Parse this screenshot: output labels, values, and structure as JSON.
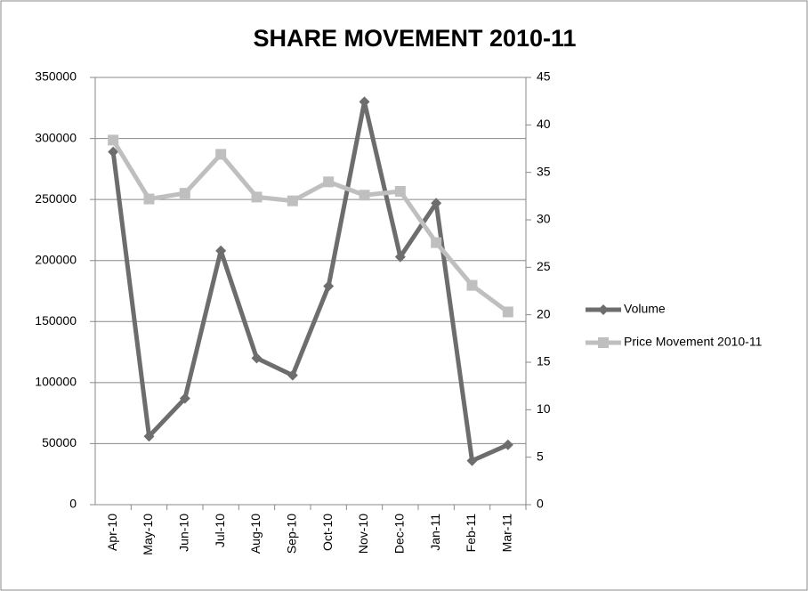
{
  "chart_data": {
    "type": "line",
    "title": "SHARE MOVEMENT 2010-11",
    "categories": [
      "Apr-10",
      "May-10",
      "Jun-10",
      "Jul-10",
      "Aug-10",
      "Sep-10",
      "Oct-10",
      "Nov-10",
      "Dec-10",
      "Jan-11",
      "Feb-11",
      "Mar-11"
    ],
    "series": [
      {
        "name": "Volume",
        "color": "#6d6d6d",
        "marker": "diamond",
        "values": [
          289000,
          56000,
          87000,
          208000,
          120000,
          106000,
          179000,
          330000,
          203000,
          247000,
          36000,
          49000
        ]
      },
      {
        "name": "Price Movement 2010-11",
        "color": "#bfbfbf",
        "marker": "square",
        "axis": "y2",
        "values": [
          38.4,
          32.2,
          32.8,
          36.9,
          32.4,
          32.0,
          34.0,
          32.6,
          33.0,
          27.6,
          23.1,
          20.3
        ]
      }
    ],
    "ylim": [
      0,
      350000
    ],
    "yticks": [
      0,
      50000,
      100000,
      150000,
      200000,
      250000,
      300000,
      350000
    ],
    "y2lim": [
      0,
      45
    ],
    "y2ticks": [
      0,
      5,
      10,
      15,
      20,
      25,
      30,
      35,
      40,
      45
    ],
    "grid": true,
    "legend": "right"
  }
}
